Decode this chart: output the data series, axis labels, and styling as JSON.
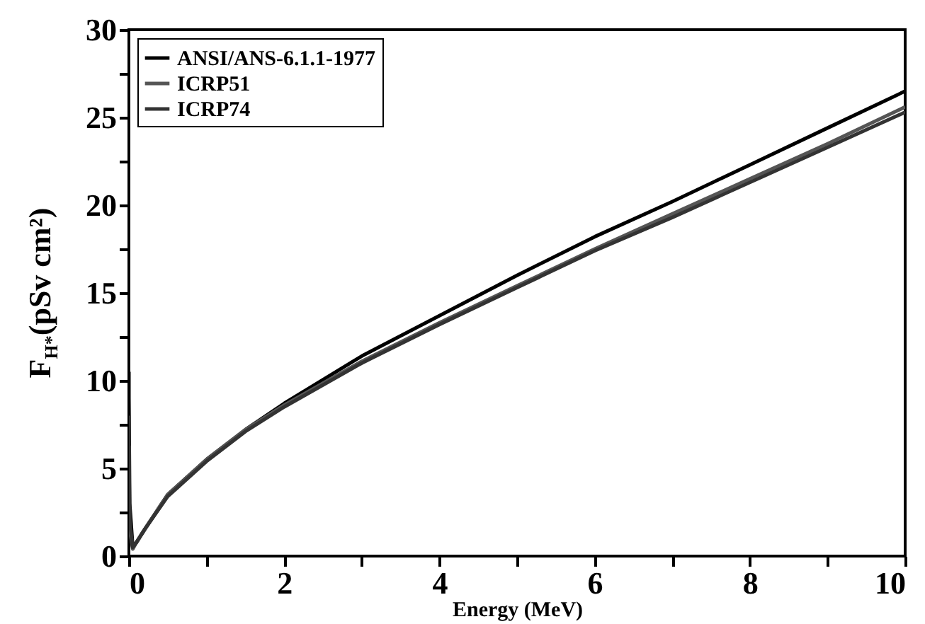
{
  "chart_data": {
    "type": "line",
    "xlabel": "Energy (MeV)",
    "ylabel": "F$_{H*}$(pSv cm²)",
    "x": [
      0,
      0.0001,
      0.01,
      0.05,
      0.1,
      0.2,
      0.5,
      1,
      1.5,
      2,
      3,
      4,
      5,
      6,
      7,
      8,
      9,
      10
    ],
    "series": [
      {
        "name": "ANSI/ANS-6.1.1-1977",
        "color": "#000000",
        "values": [
          10.5,
          9,
          3,
          0.5,
          0.8,
          1.5,
          3.5,
          5.5,
          7.2,
          8.7,
          11.4,
          13.7,
          16,
          18.2,
          20.2,
          22.3,
          24.4,
          26.5
        ]
      },
      {
        "name": "ICRP51",
        "color": "#555555",
        "values": [
          6.3,
          5,
          1.5,
          0.4,
          0.8,
          1.5,
          3.5,
          5.5,
          7.2,
          8.6,
          11.1,
          13.3,
          15.4,
          17.5,
          19.5,
          21.5,
          23.5,
          25.6
        ]
      },
      {
        "name": "ICRP74",
        "color": "#333333",
        "values": [
          8,
          6,
          2,
          0.5,
          0.8,
          1.5,
          3.4,
          5.4,
          7.1,
          8.5,
          11,
          13.2,
          15.3,
          17.4,
          19.3,
          21.3,
          23.3,
          25.3
        ]
      }
    ],
    "xlim": [
      0,
      10
    ],
    "ylim": [
      0,
      30
    ],
    "xticks": [
      0,
      {
        "value": 1,
        "label": null
      },
      2,
      {
        "value": 3,
        "label": null
      },
      4,
      {
        "value": 5,
        "label": null
      },
      6,
      {
        "value": 7,
        "label": null
      },
      8,
      {
        "value": 9,
        "label": null
      },
      10
    ],
    "yticks": [
      0,
      {
        "value": 2.5,
        "label": null
      },
      5,
      {
        "value": 7.5,
        "label": null
      },
      10,
      {
        "value": 12.5,
        "label": null
      },
      15,
      {
        "value": 17.5,
        "label": null
      },
      20,
      {
        "value": 22.5,
        "label": null
      },
      25,
      {
        "value": 27.5,
        "label": null
      },
      30
    ],
    "grid": false,
    "legend": "top left",
    "marker": "none",
    "line_style": "solid"
  }
}
